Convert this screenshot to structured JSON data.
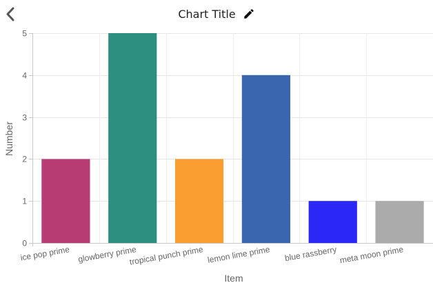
{
  "header": {
    "title": "Chart Title"
  },
  "icons": {
    "back": "chevron-left-icon",
    "edit": "pencil-icon"
  },
  "chart_data": {
    "type": "bar",
    "categories": [
      "ice pop prime",
      "glowberry prime",
      "tropical punch prime",
      "lemon lime prime",
      "blue rassberry",
      "meta moon prime"
    ],
    "values": [
      2,
      5,
      2,
      4,
      1,
      1
    ],
    "colors": [
      "#b83c74",
      "#2c8f80",
      "#fb9e32",
      "#3a66b0",
      "#2b27f6",
      "#ababab"
    ],
    "title": "Chart Title",
    "xlabel": "Item",
    "ylabel": "Number",
    "ylim": [
      0,
      5
    ],
    "yticks": [
      "0",
      "1",
      "2",
      "3",
      "4",
      "5"
    ],
    "grid": true,
    "legend": "none"
  }
}
